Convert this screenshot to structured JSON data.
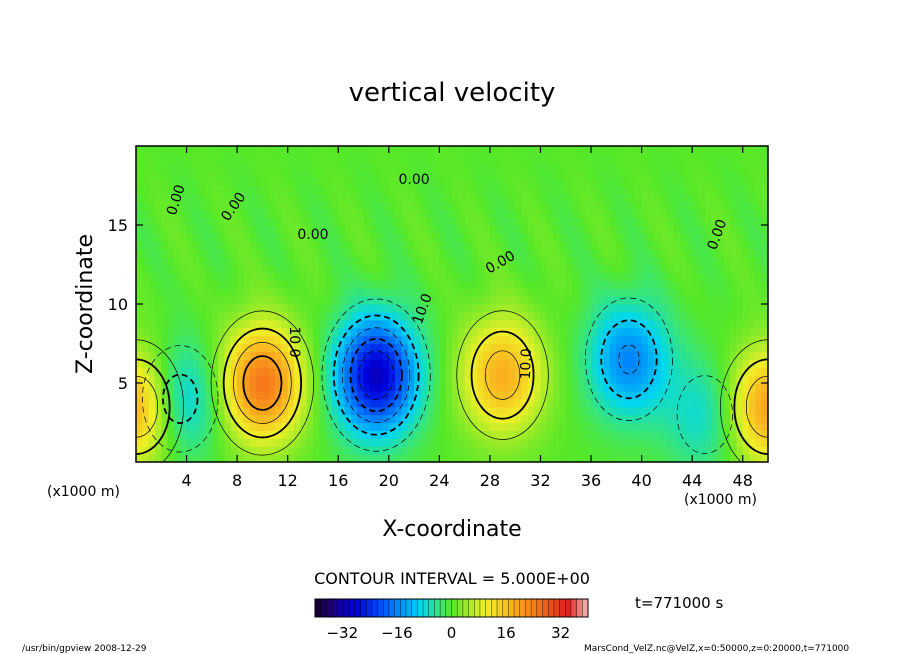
{
  "chart_data": {
    "type": "heatmap",
    "title": "vertical velocity",
    "xlabel": "X-coordinate",
    "ylabel": "Z-coordinate",
    "x_unit": "(x1000 m)",
    "z_unit": "(x1000 m)",
    "xlim": [
      0,
      50
    ],
    "ylim": [
      0,
      20
    ],
    "xticks": [
      4,
      8,
      12,
      16,
      20,
      24,
      28,
      32,
      36,
      40,
      44,
      48
    ],
    "yticks": [
      5,
      10,
      15
    ],
    "contour_interval_text": "CONTOUR INTERVAL = 5.000E+00",
    "time_text": "t=771000 s",
    "colorbar": {
      "range": [
        -40,
        40
      ],
      "ticks": [
        -32,
        -16,
        0,
        16,
        32
      ]
    },
    "contour_labels": [
      "0.00",
      "0.00",
      "0.00",
      "0.00",
      "0.00",
      "10.0",
      "10.0",
      "10.0",
      "0.00"
    ],
    "features": [
      {
        "type": "updraft",
        "x": 10,
        "z": 5,
        "value": 25
      },
      {
        "type": "downdraft",
        "x": 19,
        "z": 5.5,
        "value": -30
      },
      {
        "type": "updraft",
        "x": 29,
        "z": 5.5,
        "value": 18
      },
      {
        "type": "downdraft",
        "x": 39,
        "z": 6.5,
        "value": -16
      },
      {
        "type": "downdraft",
        "x": 3.5,
        "z": 4,
        "value": -12
      },
      {
        "type": "updraft",
        "x": 0,
        "z": 3.5,
        "value": 20
      },
      {
        "type": "updraft",
        "x": 50,
        "z": 3.5,
        "value": 20
      },
      {
        "type": "downdraft",
        "x": 45,
        "z": 3,
        "value": -8
      }
    ]
  },
  "footer": {
    "left": "/usr/bin/gpview  2008-12-29",
    "right": "MarsCond_VelZ.nc@VelZ,x=0:50000,z=0:20000,t=771000"
  }
}
